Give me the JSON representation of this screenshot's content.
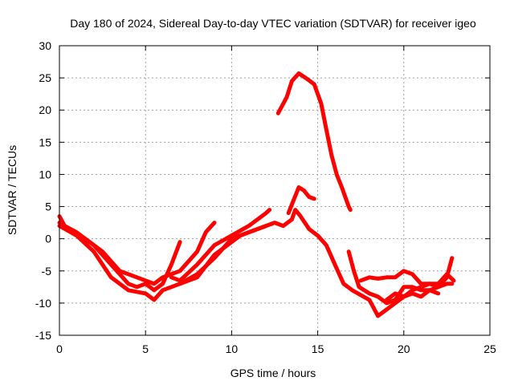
{
  "chart_data": {
    "type": "scatter",
    "title": "Day 180 of 2024, Sidereal Day-to-day VTEC variation (SDTVAR) for receiver igeo",
    "xlabel": "GPS time / hours",
    "ylabel": "SDTVAR / TECUs",
    "xlim": [
      0,
      25
    ],
    "ylim": [
      -15,
      30
    ],
    "xticks": [
      0,
      5,
      10,
      15,
      20,
      25
    ],
    "yticks": [
      -15,
      -10,
      -5,
      0,
      5,
      10,
      15,
      20,
      25,
      30
    ],
    "grid": true,
    "color": "#ff0000",
    "series": [
      {
        "name": "trace-1",
        "points": [
          [
            0,
            3.5
          ],
          [
            0.3,
            2
          ],
          [
            1,
            1
          ],
          [
            2,
            -1
          ],
          [
            3,
            -4
          ],
          [
            4,
            -7
          ],
          [
            4.5,
            -7.5
          ],
          [
            5,
            -7
          ],
          [
            5.5,
            -8
          ],
          [
            6,
            -7
          ],
          [
            6.5,
            -4
          ],
          [
            7,
            -0.5
          ]
        ]
      },
      {
        "name": "trace-2",
        "points": [
          [
            0,
            2.5
          ],
          [
            0.5,
            1.5
          ],
          [
            1.5,
            0
          ],
          [
            2.5,
            -2
          ],
          [
            3.5,
            -5
          ],
          [
            4.5,
            -6
          ],
          [
            5.5,
            -7
          ],
          [
            6,
            -6
          ],
          [
            7,
            -5
          ],
          [
            8,
            -2
          ],
          [
            8.5,
            1
          ],
          [
            9,
            2.5
          ]
        ]
      },
      {
        "name": "trace-3",
        "points": [
          [
            0,
            2
          ],
          [
            1,
            0.5
          ],
          [
            2,
            -2
          ],
          [
            3,
            -6
          ],
          [
            4,
            -8
          ],
          [
            5,
            -8.5
          ],
          [
            5.5,
            -9.5
          ],
          [
            6,
            -8
          ],
          [
            7,
            -7
          ],
          [
            8,
            -5.5
          ],
          [
            9,
            -3
          ],
          [
            10,
            0
          ],
          [
            11,
            1
          ],
          [
            12,
            2
          ]
        ]
      },
      {
        "name": "trace-4",
        "points": [
          [
            6.5,
            -6
          ],
          [
            7,
            -6.5
          ],
          [
            8,
            -4
          ],
          [
            9,
            -1
          ],
          [
            10,
            0.5
          ],
          [
            11,
            2
          ],
          [
            12,
            4
          ],
          [
            12.2,
            4.5
          ]
        ]
      },
      {
        "name": "trace-5",
        "points": [
          [
            7,
            -7
          ],
          [
            8,
            -6
          ],
          [
            9,
            -2.5
          ],
          [
            10,
            -0.5
          ],
          [
            10.5,
            0.5
          ],
          [
            11,
            1
          ],
          [
            12,
            2
          ],
          [
            12.5,
            2.5
          ],
          [
            13,
            2
          ],
          [
            13.5,
            3
          ],
          [
            13.7,
            4.5
          ],
          [
            14,
            3.5
          ],
          [
            14.5,
            1.5
          ],
          [
            15,
            0.5
          ],
          [
            15.5,
            -1
          ],
          [
            16,
            -4
          ],
          [
            16.5,
            -7
          ],
          [
            17,
            -8
          ],
          [
            18,
            -9.5
          ],
          [
            18.5,
            -12
          ],
          [
            19,
            -11
          ],
          [
            19.5,
            -10
          ],
          [
            20,
            -9
          ],
          [
            20.5,
            -8.5
          ],
          [
            21,
            -9
          ],
          [
            21.5,
            -8
          ],
          [
            22,
            -8.5
          ]
        ]
      },
      {
        "name": "trace-6",
        "points": [
          [
            13.3,
            4
          ],
          [
            13.6,
            6
          ],
          [
            13.9,
            8
          ],
          [
            14.2,
            7.5
          ],
          [
            14.5,
            6.5
          ],
          [
            14.8,
            6.2
          ]
        ]
      },
      {
        "name": "trace-7",
        "points": [
          [
            12.7,
            19.5
          ],
          [
            13.2,
            22
          ],
          [
            13.5,
            24.5
          ],
          [
            13.9,
            25.7
          ],
          [
            14.3,
            25
          ],
          [
            14.8,
            24
          ],
          [
            15.2,
            21
          ],
          [
            15.5,
            17
          ],
          [
            15.8,
            13
          ],
          [
            16.1,
            10
          ],
          [
            16.4,
            8
          ],
          [
            16.8,
            5
          ],
          [
            16.9,
            4.5
          ]
        ]
      },
      {
        "name": "trace-8",
        "points": [
          [
            16.8,
            -2
          ],
          [
            17.1,
            -5
          ],
          [
            17.4,
            -7.5
          ],
          [
            18,
            -8.5
          ],
          [
            18.5,
            -9
          ],
          [
            19,
            -10
          ],
          [
            19.5,
            -9.5
          ],
          [
            20,
            -7.5
          ],
          [
            20.5,
            -7.5
          ],
          [
            21,
            -8
          ],
          [
            21.5,
            -8
          ],
          [
            22,
            -7.5
          ],
          [
            22.5,
            -7
          ],
          [
            22.8,
            -7
          ]
        ]
      },
      {
        "name": "trace-9",
        "points": [
          [
            17.5,
            -6.5
          ],
          [
            18,
            -6
          ],
          [
            18.5,
            -6.2
          ],
          [
            19,
            -6
          ],
          [
            19.5,
            -6
          ],
          [
            20,
            -5
          ],
          [
            20.5,
            -5.5
          ],
          [
            21,
            -7
          ],
          [
            22,
            -7
          ],
          [
            22.5,
            -5.5
          ],
          [
            22.9,
            -6.5
          ]
        ]
      },
      {
        "name": "trace-10",
        "points": [
          [
            19,
            -9.5
          ],
          [
            19.5,
            -8.5
          ],
          [
            20,
            -9
          ],
          [
            20.5,
            -8
          ],
          [
            21,
            -7.5
          ],
          [
            21.5,
            -7
          ],
          [
            22,
            -7.5
          ],
          [
            22.5,
            -6
          ],
          [
            22.8,
            -3
          ]
        ]
      }
    ]
  }
}
